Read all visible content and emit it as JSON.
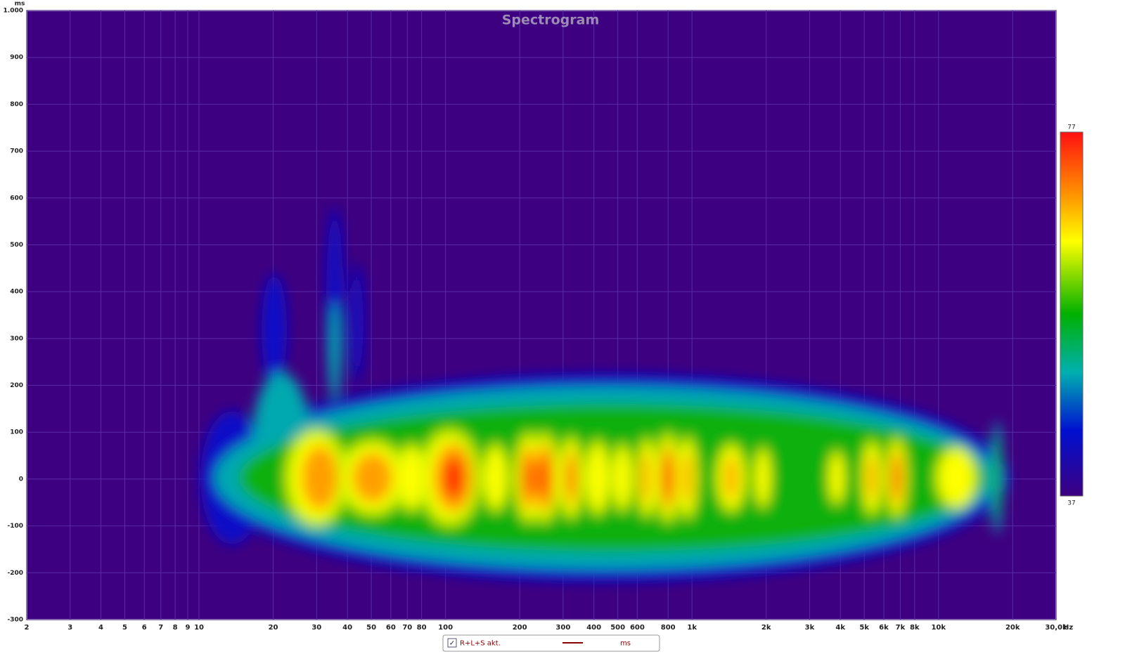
{
  "chart_data": {
    "type": "spectrogram",
    "title": "Spectrogram",
    "x_unit": "Hz",
    "y_unit": "ms",
    "x_scale": "log",
    "xlim": [
      2,
      30000
    ],
    "xticks": [
      2,
      3,
      4,
      5,
      6,
      7,
      8,
      9,
      10,
      20,
      30,
      40,
      50,
      60,
      70,
      80,
      100,
      200,
      300,
      400,
      500,
      600,
      800,
      {
        "value": 1000,
        "label": "1k"
      },
      {
        "value": 2000,
        "label": "2k"
      },
      {
        "value": 3000,
        "label": "3k"
      },
      {
        "value": 4000,
        "label": "4k"
      },
      {
        "value": 5000,
        "label": "5k"
      },
      {
        "value": 6000,
        "label": "6k"
      },
      {
        "value": 7000,
        "label": "7k"
      },
      {
        "value": 8000,
        "label": "8k"
      },
      {
        "value": 10000,
        "label": "10k"
      },
      {
        "value": 20000,
        "label": "20k"
      },
      {
        "value": 30000,
        "label": "30,0k"
      }
    ],
    "ylim": [
      -300,
      1000
    ],
    "yticks": [
      -300,
      -200,
      -100,
      0,
      100,
      200,
      300,
      400,
      500,
      600,
      700,
      800,
      900,
      {
        "value": 1000,
        "label": "1.000"
      }
    ],
    "grid": true,
    "background": "#3d0080",
    "grid_color": "#5b2aa8",
    "colorbar": {
      "clim": [
        37,
        77
      ],
      "ticks": [
        37,
        77
      ]
    },
    "legend": {
      "label": "R+L+S akt.",
      "checked": true,
      "color": "#8b0000",
      "unit": "ms"
    }
  }
}
